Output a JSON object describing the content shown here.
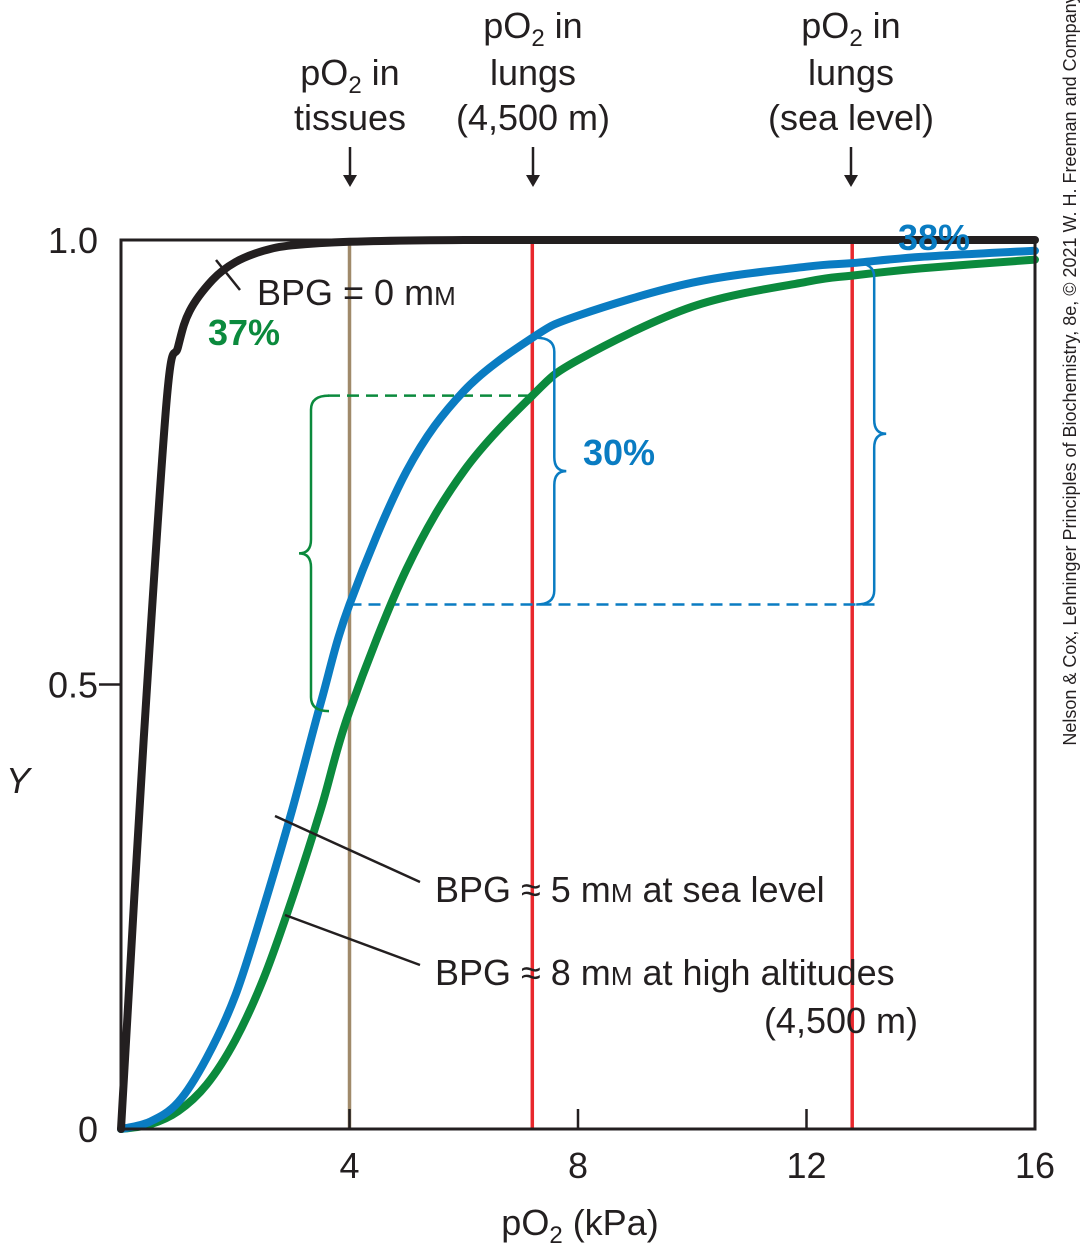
{
  "chart_data": {
    "type": "line",
    "xlabel": "pO",
    "xlabel_sub": "2",
    "xlabel_unit": " (kPa)",
    "ylabel": "Y",
    "xlim": [
      0,
      16
    ],
    "ylim": [
      0,
      1.0
    ],
    "x_ticks": [
      {
        "value": 4,
        "label": "4"
      },
      {
        "value": 8,
        "label": "8"
      },
      {
        "value": 12,
        "label": "12"
      },
      {
        "value": 16,
        "label": "16"
      }
    ],
    "y_ticks": [
      {
        "value": 0,
        "label": "0"
      },
      {
        "value": 0.5,
        "label": "0.5"
      },
      {
        "value": 1.0,
        "label": "1.0"
      }
    ],
    "series": [
      {
        "id": "bpg0",
        "color": "#231f20",
        "x": [
          0,
          0.4,
          0.8,
          1.0,
          1.2,
          1.6,
          2.0,
          2.5,
          3.0,
          4.0,
          6.0,
          10.0,
          16.0
        ],
        "y": [
          0,
          0.44,
          0.82,
          0.88,
          0.92,
          0.955,
          0.975,
          0.988,
          0.994,
          0.998,
          1.0,
          1.0,
          1.0
        ]
      },
      {
        "id": "bpg5",
        "color": "#0a7cc2",
        "x": [
          0,
          0.5,
          1.0,
          1.5,
          2.0,
          2.5,
          3.0,
          3.5,
          4.0,
          5.0,
          6.0,
          7.2,
          8.0,
          10.0,
          12.0,
          12.8,
          14.0,
          16.0
        ],
        "y": [
          0,
          0.008,
          0.03,
          0.08,
          0.15,
          0.25,
          0.36,
          0.48,
          0.59,
          0.74,
          0.83,
          0.89,
          0.915,
          0.952,
          0.97,
          0.974,
          0.981,
          0.988
        ]
      },
      {
        "id": "bpg8",
        "color": "#0b8a3d",
        "x": [
          0,
          0.5,
          1.0,
          1.5,
          2.0,
          2.5,
          3.0,
          3.5,
          4.0,
          5.0,
          6.0,
          7.2,
          8.0,
          10.0,
          12.0,
          12.8,
          14.0,
          16.0
        ],
        "y": [
          0,
          0.005,
          0.02,
          0.05,
          0.1,
          0.17,
          0.26,
          0.36,
          0.47,
          0.63,
          0.74,
          0.825,
          0.865,
          0.925,
          0.953,
          0.96,
          0.968,
          0.978
        ]
      }
    ],
    "vertical_lines": [
      {
        "x": 4.0,
        "color": "#a08a6a",
        "label": "tissues"
      },
      {
        "x": 7.2,
        "color": "#e8282d",
        "label": "lungs_4500"
      },
      {
        "x": 12.8,
        "color": "#e8282d",
        "label": "lungs_sea"
      }
    ],
    "top_labels": [
      {
        "lines": [
          "pO",
          "tissues"
        ],
        "sub": "2",
        "suffix": " in"
      },
      {
        "lines": [
          "pO",
          "lungs",
          "(4,500 m)"
        ],
        "sub": "2",
        "suffix": " in"
      },
      {
        "lines": [
          "pO",
          "lungs",
          "(sea level)"
        ],
        "sub": "2",
        "suffix": " in"
      }
    ],
    "curve_labels": {
      "bpg0": "BPG = 0 m",
      "bpg0_unit": "M",
      "bpg5_pre": "BPG ≈ 5 m",
      "bpg5_unit": "M",
      "bpg5_post": " at sea level",
      "bpg8_pre": "BPG ≈ 8 m",
      "bpg8_unit": "M",
      "bpg8_post": " at high altitudes",
      "bpg8_line2": "(4,500 m)"
    },
    "annotations": {
      "pct_37": "37%",
      "pct_30": "30%",
      "pct_38": "38%"
    },
    "credit": "Nelson & Cox, Lehninger Principles of Biochemistry, 8e, © 2021 W. H. Freeman and Company"
  }
}
